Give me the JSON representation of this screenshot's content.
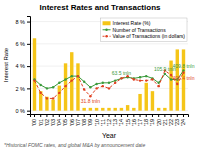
{
  "chart_data": {
    "type": "bar",
    "title": "Interest Rates and Transactions",
    "xlabel": "Year",
    "ylabel": "Interest Rate",
    "footnote": "*Historical FOMC rates, and global M&A by announcement date",
    "categories": [
      "'00",
      "'01",
      "'02",
      "'03",
      "'04",
      "'05",
      "'06",
      "'07",
      "'08",
      "'09",
      "'10",
      "'11",
      "'12",
      "'13",
      "'14",
      "'15",
      "'16",
      "'17",
      "'18",
      "'19",
      "'20",
      "'21",
      "'22",
      "'23",
      "'24"
    ],
    "series": [
      {
        "name": "Interest Rate (%)",
        "type": "bar",
        "color": "#f5c518",
        "values": [
          6.5,
          1.75,
          1.25,
          1.0,
          2.25,
          4.25,
          5.25,
          4.25,
          0.25,
          0.25,
          0.25,
          0.25,
          0.25,
          0.25,
          0.25,
          0.5,
          0.25,
          1.5,
          2.5,
          1.75,
          0.25,
          0.25,
          4.5,
          5.5,
          5.5
        ]
      },
      {
        "name": "Number of Transactions",
        "type": "line",
        "color": "#3a9a3a",
        "marker": "circle",
        "line_style": "solid",
        "values": [
          2.8,
          2.3,
          2.0,
          2.1,
          2.5,
          2.8,
          3.1,
          3.1,
          2.6,
          2.1,
          2.4,
          2.5,
          2.5,
          2.7,
          2.9,
          3.0,
          2.9,
          3.0,
          3.1,
          2.9,
          2.5,
          3.3,
          2.8,
          2.8,
          3.6
        ]
      },
      {
        "name": "Value of Transactions (in dollars)",
        "type": "line",
        "color": "#e04020",
        "marker": "circle",
        "line_style": "dashed",
        "values": [
          2.7,
          1.6,
          1.1,
          1.1,
          1.6,
          2.2,
          2.7,
          3.1,
          1.9,
          1.3,
          2.0,
          2.2,
          2.0,
          2.5,
          2.9,
          3.1,
          2.8,
          2.7,
          2.7,
          2.8,
          2.2,
          3.6,
          3.2,
          2.4,
          3.4
        ]
      }
    ],
    "ylim": [
      -0.3,
      8.5
    ],
    "yticks": [
      {
        "value": 0,
        "label": "0 %"
      },
      {
        "value": 2,
        "label": "2 %"
      },
      {
        "value": 4,
        "label": "4 %"
      },
      {
        "value": 6,
        "label": "6 %"
      },
      {
        "value": 8,
        "label": "8 %"
      }
    ],
    "grid": true,
    "legend": "upper right",
    "annotations": [
      {
        "text": "31.8 tnln",
        "x": "'09",
        "series": "Value of Transactions (in dollars)"
      },
      {
        "text": "63.5 tnln",
        "x": "'14",
        "series": "Number of Transactions"
      },
      {
        "text": "105.9 tnln",
        "x": "'21",
        "series": "Number of Transactions"
      },
      {
        "text": "409.8 tnln",
        "x": "'24",
        "series": "Number of Transactions"
      },
      {
        "text": "406.4 tnln",
        "x": "'24",
        "series": "Value of Transactions (in dollars)"
      }
    ]
  }
}
